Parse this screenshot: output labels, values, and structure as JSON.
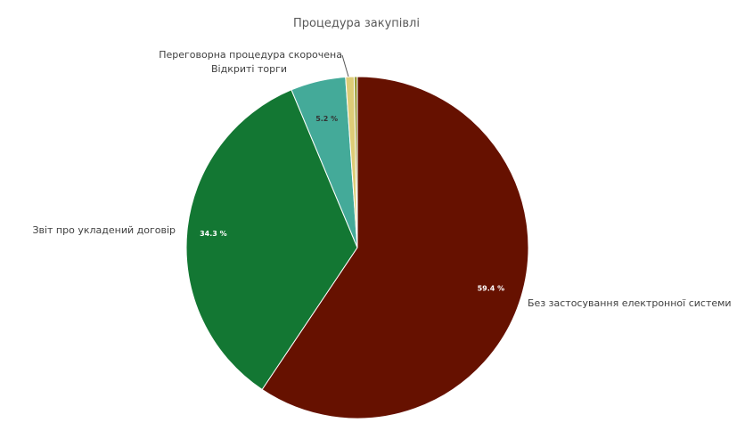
{
  "chart_data": {
    "type": "pie",
    "title": "Процедура закупівлі",
    "slices": [
      {
        "label": "Без застосування електронної системи",
        "value": 59.4,
        "display": "59.4 %",
        "color": "#661100",
        "label_color": "#ffffff",
        "show_pct": true
      },
      {
        "label": "Звіт про укладений договір",
        "value": 34.3,
        "display": "34.3 %",
        "color": "#137733",
        "label_color": "#ffffff",
        "show_pct": true
      },
      {
        "label": "Відкриті торги",
        "value": 5.2,
        "display": "5.2 %",
        "color": "#44aa99",
        "label_color": "#333333",
        "show_pct": true
      },
      {
        "label": "Переговорна процедура скорочена",
        "value": 0.8,
        "display": "",
        "color": "#ddcc77",
        "label_color": "#333333",
        "show_pct": false
      },
      {
        "label": "",
        "value": 0.3,
        "display": "",
        "color": "#999933",
        "label_color": "#333333",
        "show_pct": false
      }
    ]
  }
}
